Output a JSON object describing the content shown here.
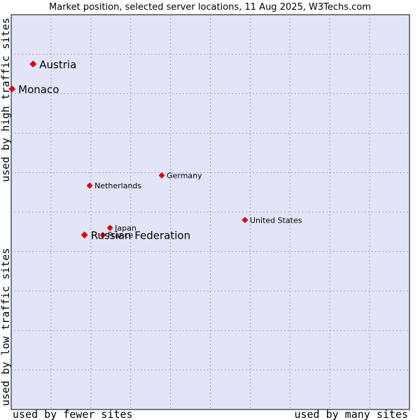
{
  "chart_data": {
    "type": "scatter",
    "title": "Market position, selected server locations, 11 Aug 2025, W3Techs.com",
    "xlabel_low": "used by fewer sites",
    "xlabel_high": "used by many sites",
    "ylabel_low": "used by low traffic sites",
    "ylabel_high": "used by high traffic sites",
    "xlim": [
      0,
      100
    ],
    "ylim": [
      0,
      100
    ],
    "grid": true,
    "colors": {
      "plot_bg": "#e4e4f8",
      "point": "#ee0000",
      "frame": "#000000",
      "grid": "#a0a0c0"
    },
    "points": [
      {
        "name": "Austria",
        "x": 5.5,
        "y": 87.5,
        "size": "large"
      },
      {
        "name": "Monaco",
        "x": 0.2,
        "y": 81.2,
        "size": "large"
      },
      {
        "name": "Germany",
        "x": 37.8,
        "y": 59.3,
        "size": "small"
      },
      {
        "name": "Netherlands",
        "x": 19.7,
        "y": 56.7,
        "size": "small"
      },
      {
        "name": "United States",
        "x": 58.7,
        "y": 48.0,
        "size": "small"
      },
      {
        "name": "Japan",
        "x": 24.8,
        "y": 46.0,
        "size": "small"
      },
      {
        "name": "France",
        "x": 23.0,
        "y": 44.2,
        "size": "small"
      },
      {
        "name": "Russian Federation",
        "x": 18.4,
        "y": 44.2,
        "size": "large"
      }
    ]
  }
}
